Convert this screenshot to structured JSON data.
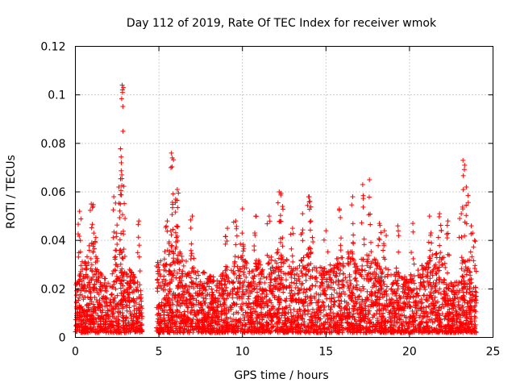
{
  "chart_data": {
    "type": "scatter",
    "title": "Day 112 of 2019, Rate Of TEC Index for receiver wmok",
    "xlabel": "GPS time / hours",
    "ylabel": "ROTI / TECUs",
    "xlim": [
      0,
      25
    ],
    "ylim": [
      0,
      0.12
    ],
    "grid": true,
    "marker": "+",
    "color": "#ff0000",
    "x_ticks": [
      {
        "value": 0,
        "label": "0"
      },
      {
        "value": 5,
        "label": "5"
      },
      {
        "value": 10,
        "label": "10"
      },
      {
        "value": 15,
        "label": "15"
      },
      {
        "value": 20,
        "label": "20"
      },
      {
        "value": 25,
        "label": "25"
      }
    ],
    "y_ticks": [
      {
        "value": 0,
        "label": "0"
      },
      {
        "value": 0.02,
        "label": "0.02"
      },
      {
        "value": 0.04,
        "label": "0.04"
      },
      {
        "value": 0.06,
        "label": "0.06"
      },
      {
        "value": 0.08,
        "label": "0.08"
      },
      {
        "value": 0.1,
        "label": "0.1"
      },
      {
        "value": 0.12,
        "label": "0.12"
      }
    ],
    "gaps": [
      [
        4.0,
        4.85
      ]
    ],
    "peaks": [
      {
        "x": 0.25,
        "y": 0.052
      },
      {
        "x": 0.3,
        "y": 0.04
      },
      {
        "x": 0.95,
        "y": 0.055
      },
      {
        "x": 1.1,
        "y": 0.043
      },
      {
        "x": 2.3,
        "y": 0.058
      },
      {
        "x": 2.45,
        "y": 0.043
      },
      {
        "x": 2.6,
        "y": 0.062
      },
      {
        "x": 2.8,
        "y": 0.104
      },
      {
        "x": 2.82,
        "y": 0.101
      },
      {
        "x": 2.85,
        "y": 0.085
      },
      {
        "x": 2.75,
        "y": 0.072
      },
      {
        "x": 2.78,
        "y": 0.067
      },
      {
        "x": 3.8,
        "y": 0.048
      },
      {
        "x": 5.5,
        "y": 0.048
      },
      {
        "x": 5.75,
        "y": 0.076
      },
      {
        "x": 5.8,
        "y": 0.074
      },
      {
        "x": 6.1,
        "y": 0.061
      },
      {
        "x": 6.0,
        "y": 0.057
      },
      {
        "x": 7.0,
        "y": 0.05
      },
      {
        "x": 9.1,
        "y": 0.045
      },
      {
        "x": 9.6,
        "y": 0.048
      },
      {
        "x": 10.0,
        "y": 0.053
      },
      {
        "x": 10.8,
        "y": 0.05
      },
      {
        "x": 11.6,
        "y": 0.05
      },
      {
        "x": 12.2,
        "y": 0.06
      },
      {
        "x": 12.4,
        "y": 0.054
      },
      {
        "x": 13.0,
        "y": 0.045
      },
      {
        "x": 13.6,
        "y": 0.051
      },
      {
        "x": 14.0,
        "y": 0.058
      },
      {
        "x": 14.1,
        "y": 0.048
      },
      {
        "x": 15.0,
        "y": 0.044
      },
      {
        "x": 15.8,
        "y": 0.053
      },
      {
        "x": 16.6,
        "y": 0.058
      },
      {
        "x": 17.2,
        "y": 0.063
      },
      {
        "x": 17.6,
        "y": 0.065
      },
      {
        "x": 18.2,
        "y": 0.047
      },
      {
        "x": 18.5,
        "y": 0.044
      },
      {
        "x": 19.3,
        "y": 0.046
      },
      {
        "x": 20.2,
        "y": 0.047
      },
      {
        "x": 21.2,
        "y": 0.05
      },
      {
        "x": 21.8,
        "y": 0.051
      },
      {
        "x": 22.3,
        "y": 0.048
      },
      {
        "x": 23.2,
        "y": 0.073
      },
      {
        "x": 23.3,
        "y": 0.071
      },
      {
        "x": 23.4,
        "y": 0.062
      },
      {
        "x": 23.1,
        "y": 0.051
      },
      {
        "x": 23.7,
        "y": 0.046
      },
      {
        "x": 23.9,
        "y": 0.04
      }
    ],
    "envelope": [
      {
        "x": 0.0,
        "y": 0.02
      },
      {
        "x": 0.5,
        "y": 0.028
      },
      {
        "x": 1.0,
        "y": 0.04
      },
      {
        "x": 1.5,
        "y": 0.025
      },
      {
        "x": 2.0,
        "y": 0.022
      },
      {
        "x": 2.5,
        "y": 0.03
      },
      {
        "x": 3.0,
        "y": 0.028
      },
      {
        "x": 3.5,
        "y": 0.024
      },
      {
        "x": 4.0,
        "y": 0.018
      },
      {
        "x": 4.85,
        "y": 0.03
      },
      {
        "x": 5.5,
        "y": 0.035
      },
      {
        "x": 6.0,
        "y": 0.038
      },
      {
        "x": 6.5,
        "y": 0.03
      },
      {
        "x": 7.0,
        "y": 0.032
      },
      {
        "x": 7.5,
        "y": 0.026
      },
      {
        "x": 8.0,
        "y": 0.024
      },
      {
        "x": 8.5,
        "y": 0.022
      },
      {
        "x": 9.0,
        "y": 0.026
      },
      {
        "x": 9.5,
        "y": 0.03
      },
      {
        "x": 10.0,
        "y": 0.033
      },
      {
        "x": 10.5,
        "y": 0.028
      },
      {
        "x": 11.0,
        "y": 0.03
      },
      {
        "x": 11.5,
        "y": 0.028
      },
      {
        "x": 12.0,
        "y": 0.035
      },
      {
        "x": 12.5,
        "y": 0.032
      },
      {
        "x": 13.0,
        "y": 0.026
      },
      {
        "x": 13.5,
        "y": 0.03
      },
      {
        "x": 14.0,
        "y": 0.036
      },
      {
        "x": 14.5,
        "y": 0.028
      },
      {
        "x": 15.0,
        "y": 0.026
      },
      {
        "x": 15.5,
        "y": 0.03
      },
      {
        "x": 16.0,
        "y": 0.032
      },
      {
        "x": 16.5,
        "y": 0.034
      },
      {
        "x": 17.0,
        "y": 0.03
      },
      {
        "x": 17.5,
        "y": 0.033
      },
      {
        "x": 18.0,
        "y": 0.03
      },
      {
        "x": 18.5,
        "y": 0.028
      },
      {
        "x": 19.0,
        "y": 0.026
      },
      {
        "x": 19.5,
        "y": 0.024
      },
      {
        "x": 20.0,
        "y": 0.022
      },
      {
        "x": 20.5,
        "y": 0.026
      },
      {
        "x": 21.0,
        "y": 0.03
      },
      {
        "x": 21.5,
        "y": 0.034
      },
      {
        "x": 22.0,
        "y": 0.033
      },
      {
        "x": 22.5,
        "y": 0.02
      },
      {
        "x": 23.0,
        "y": 0.022
      },
      {
        "x": 23.5,
        "y": 0.03
      },
      {
        "x": 24.0,
        "y": 0.018
      }
    ]
  }
}
